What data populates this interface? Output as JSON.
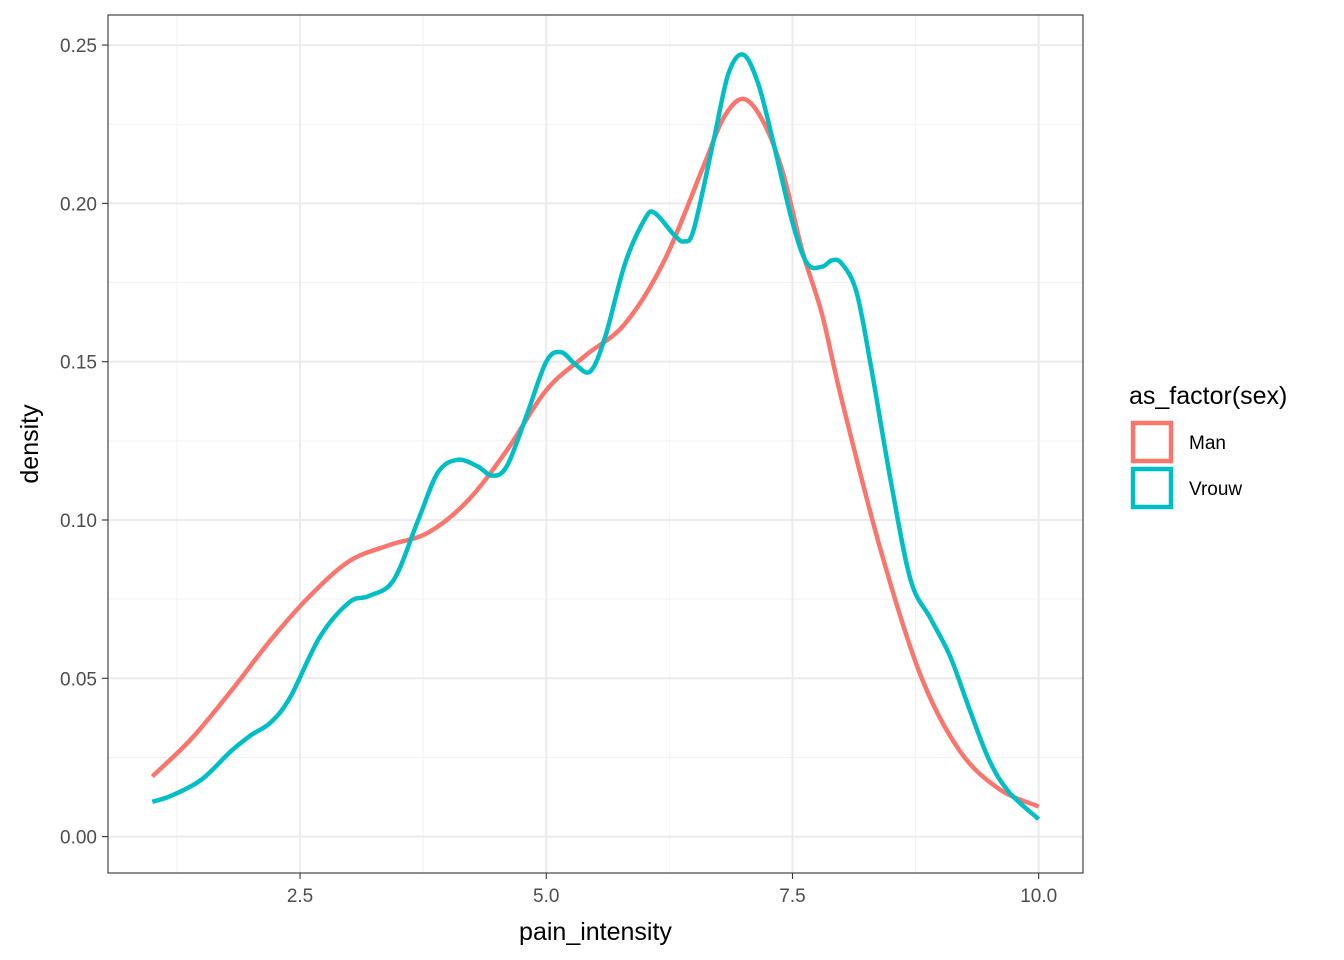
{
  "chart_data": {
    "type": "line",
    "xlabel": "pain_intensity",
    "ylabel": "density",
    "xlim": [
      0.55,
      10.45
    ],
    "ylim": [
      -0.0115,
      0.2595
    ],
    "x_ticks": [
      2.5,
      5.0,
      7.5,
      10.0
    ],
    "x_tick_labels": [
      "2.5",
      "5.0",
      "7.5",
      "10.0"
    ],
    "y_ticks": [
      0.0,
      0.05,
      0.1,
      0.15,
      0.2,
      0.25
    ],
    "y_tick_labels": [
      "0.00",
      "0.05",
      "0.10",
      "0.15",
      "0.20",
      "0.25"
    ],
    "grid": true,
    "legend": {
      "title": "as_factor(sex)",
      "position": "right"
    },
    "series": [
      {
        "name": "Man",
        "color": "#F8766D",
        "x": [
          1.0,
          1.4,
          1.8,
          2.2,
          2.6,
          3.0,
          3.4,
          3.8,
          4.2,
          4.6,
          5.0,
          5.4,
          5.8,
          6.2,
          6.6,
          6.8,
          7.0,
          7.2,
          7.4,
          7.6,
          7.8,
          8.0,
          8.4,
          8.8,
          9.2,
          9.6,
          10.0
        ],
        "y": [
          0.019,
          0.031,
          0.046,
          0.062,
          0.076,
          0.087,
          0.092,
          0.096,
          0.106,
          0.122,
          0.141,
          0.152,
          0.162,
          0.182,
          0.212,
          0.227,
          0.233,
          0.226,
          0.21,
          0.185,
          0.165,
          0.138,
          0.09,
          0.051,
          0.027,
          0.015,
          0.0095
        ]
      },
      {
        "name": "Vrouw",
        "color": "#00BFC4",
        "x": [
          1.0,
          1.2,
          1.5,
          1.8,
          2.0,
          2.2,
          2.4,
          2.7,
          3.0,
          3.2,
          3.45,
          3.7,
          3.9,
          4.1,
          4.3,
          4.45,
          4.6,
          4.8,
          5.0,
          5.15,
          5.3,
          5.45,
          5.6,
          5.8,
          6.0,
          6.1,
          6.3,
          6.4,
          6.5,
          6.7,
          6.85,
          7.0,
          7.15,
          7.3,
          7.5,
          7.65,
          7.8,
          7.9,
          8.0,
          8.15,
          8.3,
          8.5,
          8.7,
          8.9,
          9.1,
          9.3,
          9.5,
          9.7,
          10.0
        ],
        "y": [
          0.011,
          0.013,
          0.018,
          0.027,
          0.032,
          0.036,
          0.044,
          0.063,
          0.074,
          0.076,
          0.081,
          0.1,
          0.115,
          0.119,
          0.117,
          0.114,
          0.117,
          0.133,
          0.15,
          0.153,
          0.149,
          0.147,
          0.158,
          0.181,
          0.195,
          0.197,
          0.19,
          0.188,
          0.192,
          0.22,
          0.241,
          0.247,
          0.238,
          0.22,
          0.194,
          0.181,
          0.18,
          0.182,
          0.181,
          0.172,
          0.148,
          0.112,
          0.081,
          0.069,
          0.057,
          0.04,
          0.024,
          0.014,
          0.0055
        ]
      }
    ]
  }
}
